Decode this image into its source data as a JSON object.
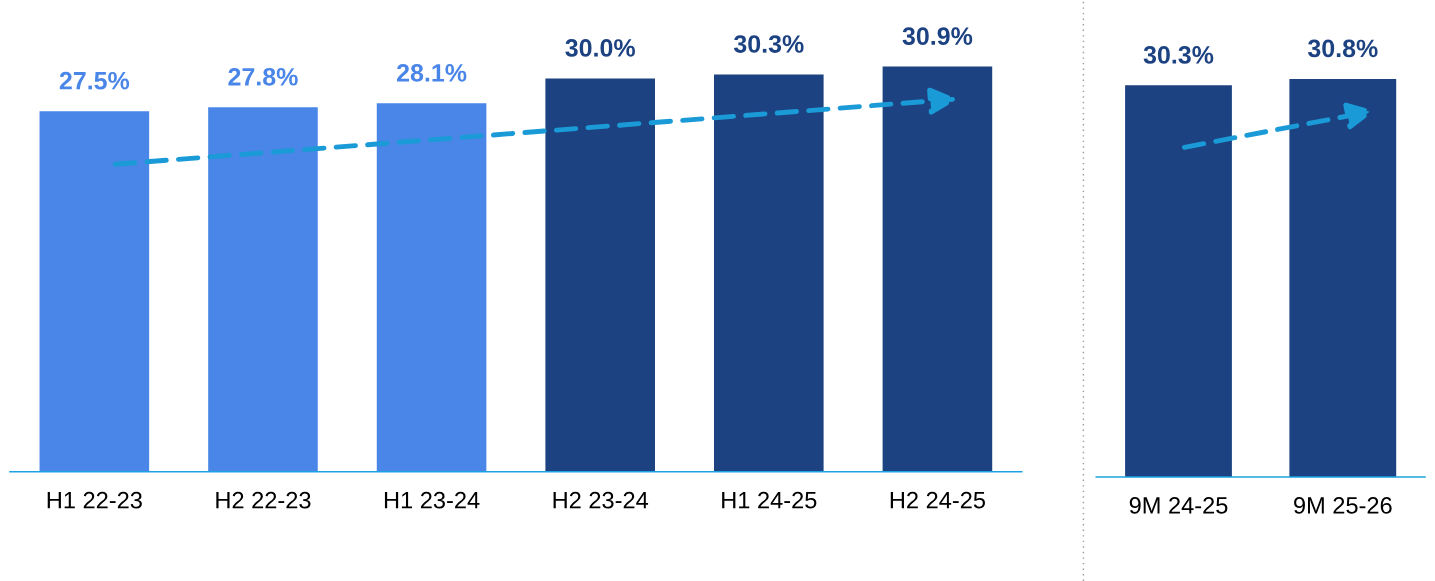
{
  "chart_data": [
    {
      "type": "bar",
      "categories": [
        "H1 22-23",
        "H2 22-23",
        "H1 23-24",
        "H2 23-24",
        "H1 24-25",
        "H2 24-25"
      ],
      "values": [
        27.5,
        27.8,
        28.1,
        30.0,
        30.3,
        30.9
      ],
      "colors": [
        "#4a86e8",
        "#4a86e8",
        "#4a86e8",
        "#1c4282",
        "#1c4282",
        "#1c4282"
      ],
      "value_labels": [
        "27.5%",
        "27.8%",
        "28.1%",
        "30.0%",
        "30.3%",
        "30.9%"
      ],
      "tick_labels": "x",
      "grid": false,
      "legend": false
    },
    {
      "type": "bar",
      "categories": [
        "9M 24-25",
        "9M 25-26"
      ],
      "values": [
        30.3,
        30.8
      ],
      "colors": [
        "#1c4282",
        "#1c4282"
      ],
      "value_labels": [
        "30.3%",
        "30.8%"
      ],
      "tick_labels": "x",
      "grid": false,
      "legend": false
    }
  ]
}
